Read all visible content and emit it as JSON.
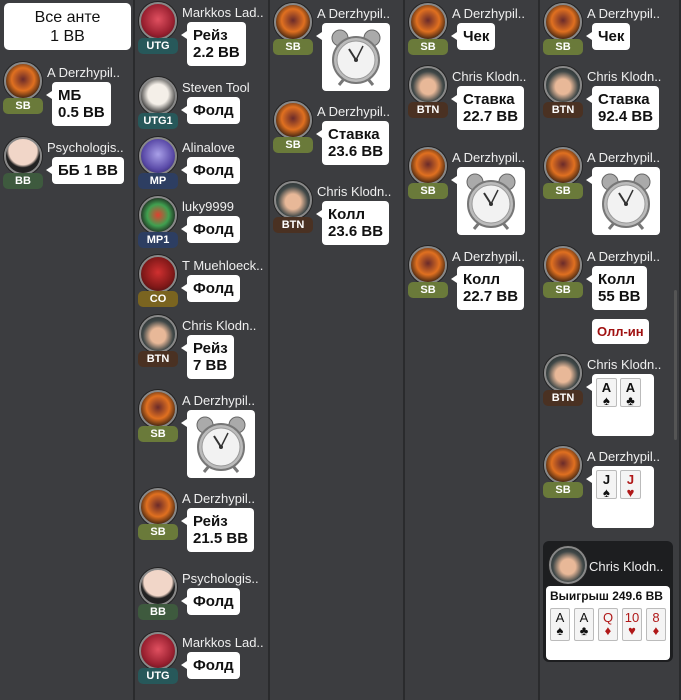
{
  "ante": {
    "line1": "Все анте",
    "line2": "1 BB"
  },
  "badge_colors": {
    "SB": "#6a7a3a",
    "BB": "#3e5a3e",
    "UTG": "#27585a",
    "UTG1": "#27585a",
    "MP": "#2d3e62",
    "MP1": "#2d3e62",
    "CO": "#7a6420",
    "BTN": "#4a3122"
  },
  "colors": {
    "background": "#3c3d40",
    "allin_text": "#a01010",
    "red_suit": "#b01818"
  },
  "columns": [
    {
      "entries": [
        {
          "player": "A Derzhypil..",
          "avatar": "derz",
          "position": "SB",
          "action": {
            "type": "text",
            "lines": [
              "МБ",
              "0.5 BB"
            ]
          }
        },
        {
          "player": "Psychologis..",
          "avatar": "psych",
          "position": "BB",
          "action": {
            "type": "text",
            "lines": [
              "ББ 1 BB"
            ]
          }
        }
      ]
    },
    {
      "entries": [
        {
          "player": "Markkos Lad..",
          "avatar": "markkos",
          "position": "UTG",
          "action": {
            "type": "text",
            "lines": [
              "Рейз",
              "2.2 BB"
            ]
          }
        },
        {
          "player": "Steven Tool",
          "avatar": "steven",
          "position": "UTG1",
          "action": {
            "type": "text",
            "lines": [
              "Фолд"
            ]
          }
        },
        {
          "player": "Alinalove",
          "avatar": "alina",
          "position": "MP",
          "action": {
            "type": "text",
            "lines": [
              "Фолд"
            ]
          }
        },
        {
          "player": "luky9999",
          "avatar": "luky",
          "position": "MP1",
          "action": {
            "type": "text",
            "lines": [
              "Фолд"
            ]
          }
        },
        {
          "player": "T Muehloeck..",
          "avatar": "muehl",
          "position": "CO",
          "action": {
            "type": "text",
            "lines": [
              "Фолд"
            ]
          }
        },
        {
          "player": "Chris Klodn..",
          "avatar": "chris",
          "position": "BTN",
          "action": {
            "type": "text",
            "lines": [
              "Рейз",
              "7 BB"
            ]
          }
        },
        {
          "player": "A Derzhypil..",
          "avatar": "derz",
          "position": "SB",
          "action": {
            "type": "clock",
            "icon": "alarm-clock-icon"
          }
        },
        {
          "player": "A Derzhypil..",
          "avatar": "derz",
          "position": "SB",
          "action": {
            "type": "text",
            "lines": [
              "Рейз",
              "21.5 BB"
            ]
          }
        },
        {
          "player": "Psychologis..",
          "avatar": "psych",
          "position": "BB",
          "action": {
            "type": "text",
            "lines": [
              "Фолд"
            ]
          }
        },
        {
          "player": "Markkos Lad..",
          "avatar": "markkos",
          "position": "UTG",
          "action": {
            "type": "text",
            "lines": [
              "Фолд"
            ]
          }
        }
      ]
    },
    {
      "entries": [
        {
          "player": "A Derzhypil..",
          "avatar": "derz",
          "position": "SB",
          "action": {
            "type": "clock",
            "icon": "alarm-clock-icon"
          }
        },
        {
          "player": "A Derzhypil..",
          "avatar": "derz",
          "position": "SB",
          "action": {
            "type": "text",
            "lines": [
              "Ставка",
              "23.6 BB"
            ]
          }
        },
        {
          "player": "Chris Klodn..",
          "avatar": "chris",
          "position": "BTN",
          "action": {
            "type": "text",
            "lines": [
              "Колл",
              "23.6 BB"
            ]
          }
        }
      ]
    },
    {
      "entries": [
        {
          "player": "A Derzhypil..",
          "avatar": "derz",
          "position": "SB",
          "action": {
            "type": "text",
            "lines": [
              "Чек"
            ]
          }
        },
        {
          "player": "Chris Klodn..",
          "avatar": "chris",
          "position": "BTN",
          "action": {
            "type": "text",
            "lines": [
              "Ставка",
              "22.7 BB"
            ]
          }
        },
        {
          "player": "A Derzhypil..",
          "avatar": "derz",
          "position": "SB",
          "action": {
            "type": "clock",
            "icon": "alarm-clock-icon"
          }
        },
        {
          "player": "A Derzhypil..",
          "avatar": "derz",
          "position": "SB",
          "action": {
            "type": "text",
            "lines": [
              "Колл",
              "22.7 BB"
            ]
          }
        }
      ]
    },
    {
      "entries": [
        {
          "player": "A Derzhypil..",
          "avatar": "derz",
          "position": "SB",
          "action": {
            "type": "text",
            "lines": [
              "Чек"
            ]
          }
        },
        {
          "player": "Chris Klodn..",
          "avatar": "chris",
          "position": "BTN",
          "action": {
            "type": "text",
            "lines": [
              "Ставка",
              "92.4 BB"
            ]
          }
        },
        {
          "player": "A Derzhypil..",
          "avatar": "derz",
          "position": "SB",
          "action": {
            "type": "clock",
            "icon": "alarm-clock-icon"
          }
        },
        {
          "player": "A Derzhypil..",
          "avatar": "derz",
          "position": "SB",
          "action": {
            "type": "text",
            "lines": [
              "Колл",
              "55 BB"
            ]
          },
          "allin": "Олл-ин"
        },
        {
          "player": "Chris Klodn..",
          "avatar": "chris",
          "position": "BTN",
          "action": {
            "type": "cards",
            "cards": [
              {
                "rank": "A",
                "suit": "♠"
              },
              {
                "rank": "A",
                "suit": "♣"
              }
            ]
          }
        },
        {
          "player": "A Derzhypil..",
          "avatar": "derz",
          "position": "SB",
          "action": {
            "type": "cards",
            "cards": [
              {
                "rank": "J",
                "suit": "♠"
              },
              {
                "rank": "J",
                "suit": "♥"
              }
            ]
          }
        }
      ]
    }
  ],
  "winner": {
    "player": "Chris Klodn..",
    "avatar": "chris",
    "title": "Выигрыш 249.6 BB",
    "cards": [
      {
        "rank": "A",
        "suit": "♠"
      },
      {
        "rank": "A",
        "suit": "♣"
      },
      {
        "rank": "Q",
        "suit": "♦"
      },
      {
        "rank": "10",
        "suit": "♥"
      },
      {
        "rank": "8",
        "suit": "♦"
      }
    ]
  }
}
